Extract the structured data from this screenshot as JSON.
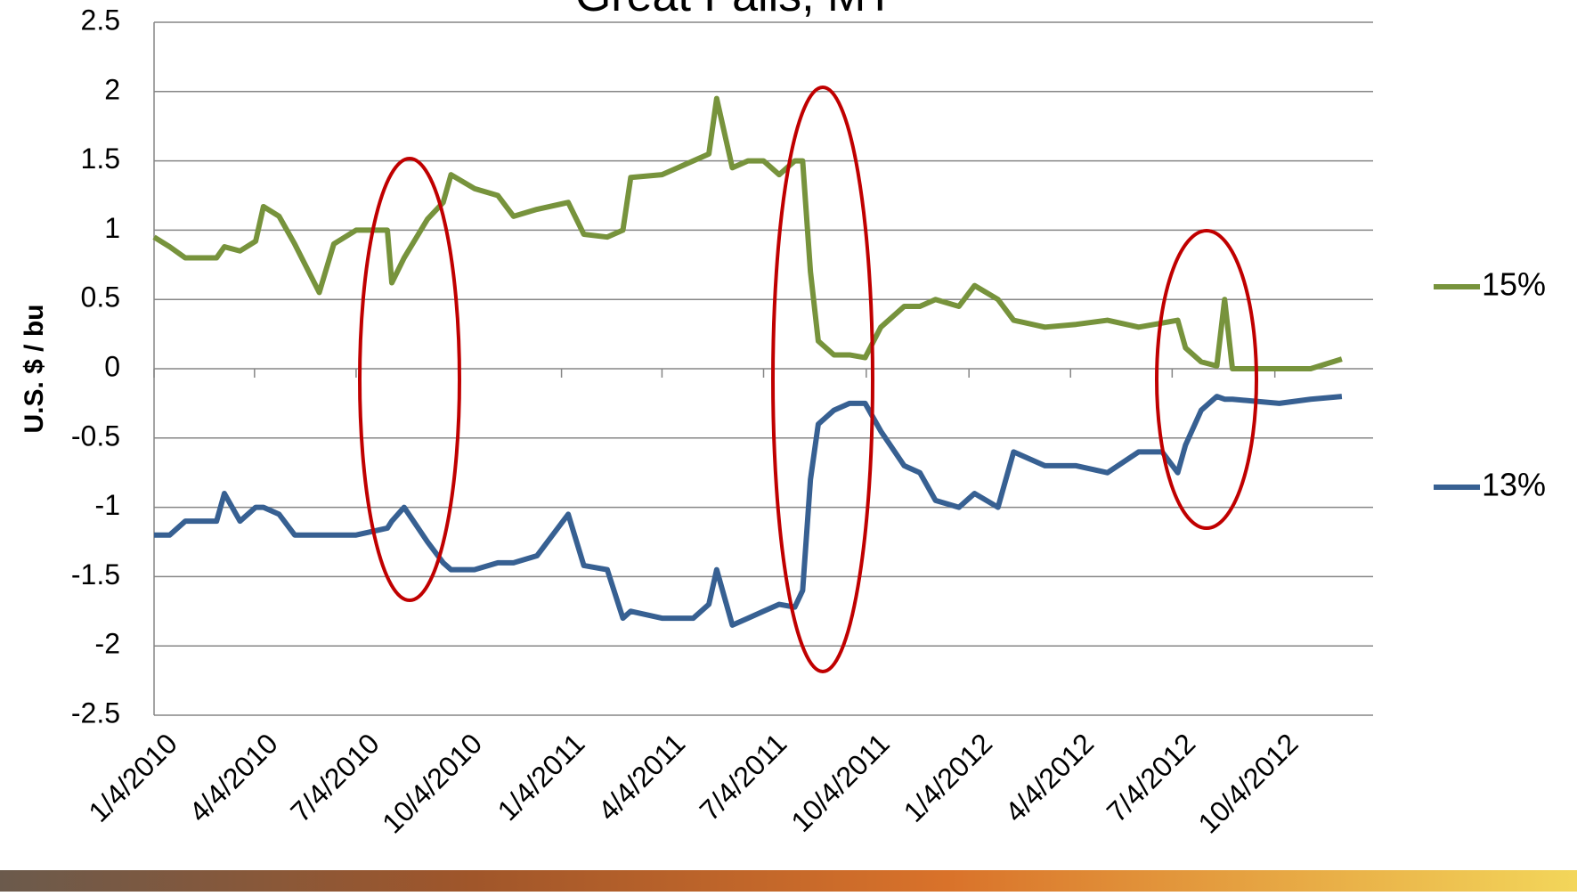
{
  "chart_data": {
    "type": "line",
    "title": "Great Falls, MT",
    "y_label": "U.S. $ / bu",
    "x": [
      "1/4/2010",
      "1/18/2010",
      "2/1/2010",
      "3/1/2010",
      "3/8/2010",
      "3/22/2010",
      "4/5/2010",
      "4/12/2010",
      "4/26/2010",
      "5/10/2010",
      "6/1/2010",
      "6/14/2010",
      "7/4/2010",
      "8/1/2010",
      "8/5/2010",
      "8/16/2010",
      "9/6/2010",
      "9/20/2010",
      "9/27/2010",
      "10/18/2010",
      "11/8/2010",
      "11/22/2010",
      "12/13/2010",
      "1/10/2011",
      "1/24/2011",
      "2/14/2011",
      "2/28/2011",
      "3/7/2011",
      "4/4/2011",
      "5/2/2011",
      "5/16/2011",
      "5/23/2011",
      "6/6/2011",
      "6/20/2011",
      "7/4/2011",
      "7/18/2011",
      "8/1/2011",
      "8/8/2011",
      "8/15/2011",
      "8/22/2011",
      "9/5/2011",
      "9/19/2011",
      "10/3/2011",
      "10/17/2011",
      "11/7/2011",
      "11/21/2011",
      "12/5/2011",
      "12/26/2011",
      "1/9/2012",
      "1/30/2012",
      "2/13/2012",
      "3/12/2012",
      "4/9/2012",
      "5/7/2012",
      "6/4/2012",
      "6/25/2012",
      "7/9/2012",
      "7/16/2012",
      "7/30/2012",
      "8/13/2012",
      "8/20/2012",
      "8/27/2012",
      "10/8/2012",
      "11/5/2012",
      "12/3/2012"
    ],
    "series": [
      {
        "name": "15%",
        "color": "#77933c",
        "values": [
          0.95,
          0.88,
          0.8,
          0.8,
          0.88,
          0.85,
          0.92,
          1.17,
          1.1,
          0.9,
          0.55,
          0.9,
          1.0,
          1.0,
          0.62,
          0.8,
          1.08,
          1.2,
          1.4,
          1.3,
          1.25,
          1.1,
          1.15,
          1.2,
          0.97,
          0.95,
          1.0,
          1.38,
          1.4,
          1.5,
          1.55,
          1.95,
          1.45,
          1.5,
          1.5,
          1.4,
          1.5,
          1.5,
          0.7,
          0.2,
          0.1,
          0.1,
          0.08,
          0.3,
          0.45,
          0.45,
          0.5,
          0.45,
          0.6,
          0.5,
          0.35,
          0.3,
          0.32,
          0.35,
          0.3,
          0.33,
          0.35,
          0.15,
          0.05,
          0.02,
          0.5,
          0.0,
          0.0,
          0.0,
          0.07
        ]
      },
      {
        "name": "13%",
        "color": "#376092",
        "values": [
          -1.2,
          -1.2,
          -1.1,
          -1.1,
          -0.9,
          -1.1,
          -1.0,
          -1.0,
          -1.05,
          -1.2,
          -1.2,
          -1.2,
          -1.2,
          -1.15,
          -1.1,
          -1.0,
          -1.25,
          -1.4,
          -1.45,
          -1.45,
          -1.4,
          -1.4,
          -1.35,
          -1.05,
          -1.42,
          -1.45,
          -1.8,
          -1.75,
          -1.8,
          -1.8,
          -1.7,
          -1.45,
          -1.85,
          -1.8,
          -1.75,
          -1.7,
          -1.72,
          -1.6,
          -0.8,
          -0.4,
          -0.3,
          -0.25,
          -0.25,
          -0.45,
          -0.7,
          -0.75,
          -0.95,
          -1.0,
          -0.9,
          -1.0,
          -0.6,
          -0.7,
          -0.7,
          -0.75,
          -0.6,
          -0.6,
          -0.75,
          -0.55,
          -0.3,
          -0.2,
          -0.22,
          -0.22,
          -0.25,
          -0.22,
          -0.2
        ]
      }
    ],
    "xlim": [
      "1/4/2010",
      "12/31/2012"
    ],
    "xticks": [
      "1/4/2010",
      "4/4/2010",
      "7/4/2010",
      "10/4/2010",
      "1/4/2011",
      "4/4/2011",
      "7/4/2011",
      "10/4/2011",
      "1/4/2012",
      "4/4/2012",
      "7/4/2012",
      "10/4/2012"
    ],
    "ylim": [
      -2.5,
      2.5
    ],
    "yticks": [
      2.5,
      2,
      1.5,
      1,
      0.5,
      0,
      -0.5,
      -1,
      -1.5,
      -2,
      -2.5
    ],
    "grid": true
  }
}
